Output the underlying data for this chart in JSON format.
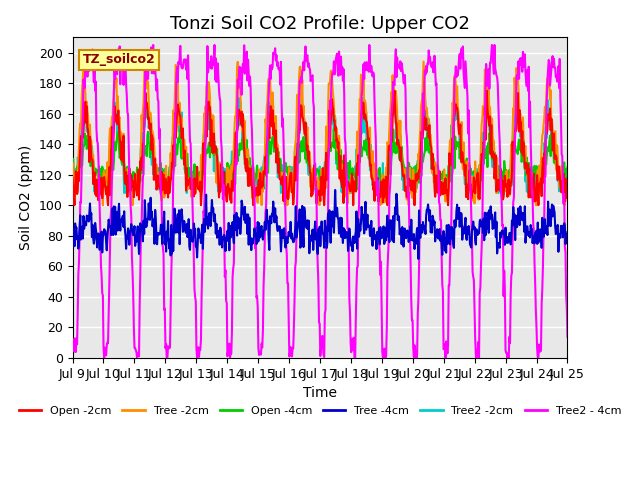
{
  "title": "Tonzi Soil CO2 Profile: Upper CO2",
  "ylabel": "Soil CO2 (ppm)",
  "xlabel": "Time",
  "legend_label": "TZ_soilco2",
  "x_start": 9.0,
  "x_end": 25.0,
  "ylim": [
    0,
    210
  ],
  "yticks": [
    0,
    20,
    40,
    60,
    80,
    100,
    120,
    140,
    160,
    180,
    200
  ],
  "xtick_positions": [
    9,
    10,
    11,
    12,
    13,
    14,
    15,
    16,
    17,
    18,
    19,
    20,
    21,
    22,
    23,
    24,
    25
  ],
  "xtick_labels": [
    "Jul 9",
    "Jul 10",
    "Jul 11",
    "Jul 12",
    "Jul 13",
    "Jul 14",
    "Jul 15",
    "Jul 16",
    "Jul 17",
    "Jul 18",
    "Jul 19",
    "Jul 20",
    "Jul 21",
    "Jul 22",
    "Jul 23",
    "Jul 24",
    "Jul 25"
  ],
  "series": {
    "Open -2cm": {
      "color": "#ff0000",
      "lw": 1.5
    },
    "Tree -2cm": {
      "color": "#ff8c00",
      "lw": 1.5
    },
    "Open -4cm": {
      "color": "#00cc00",
      "lw": 1.5
    },
    "Tree -4cm": {
      "color": "#0000cc",
      "lw": 1.5
    },
    "Tree2 -2cm": {
      "color": "#00cccc",
      "lw": 1.5
    },
    "Tree2 - 4cm": {
      "color": "#ff00ff",
      "lw": 1.5
    }
  },
  "bg_color": "#e8e8e8",
  "grid_color": "#ffffff",
  "title_fontsize": 13,
  "axis_label_fontsize": 10,
  "tick_fontsize": 9,
  "legend_box_color": "#ffff99",
  "legend_box_edge": "#cc8800"
}
